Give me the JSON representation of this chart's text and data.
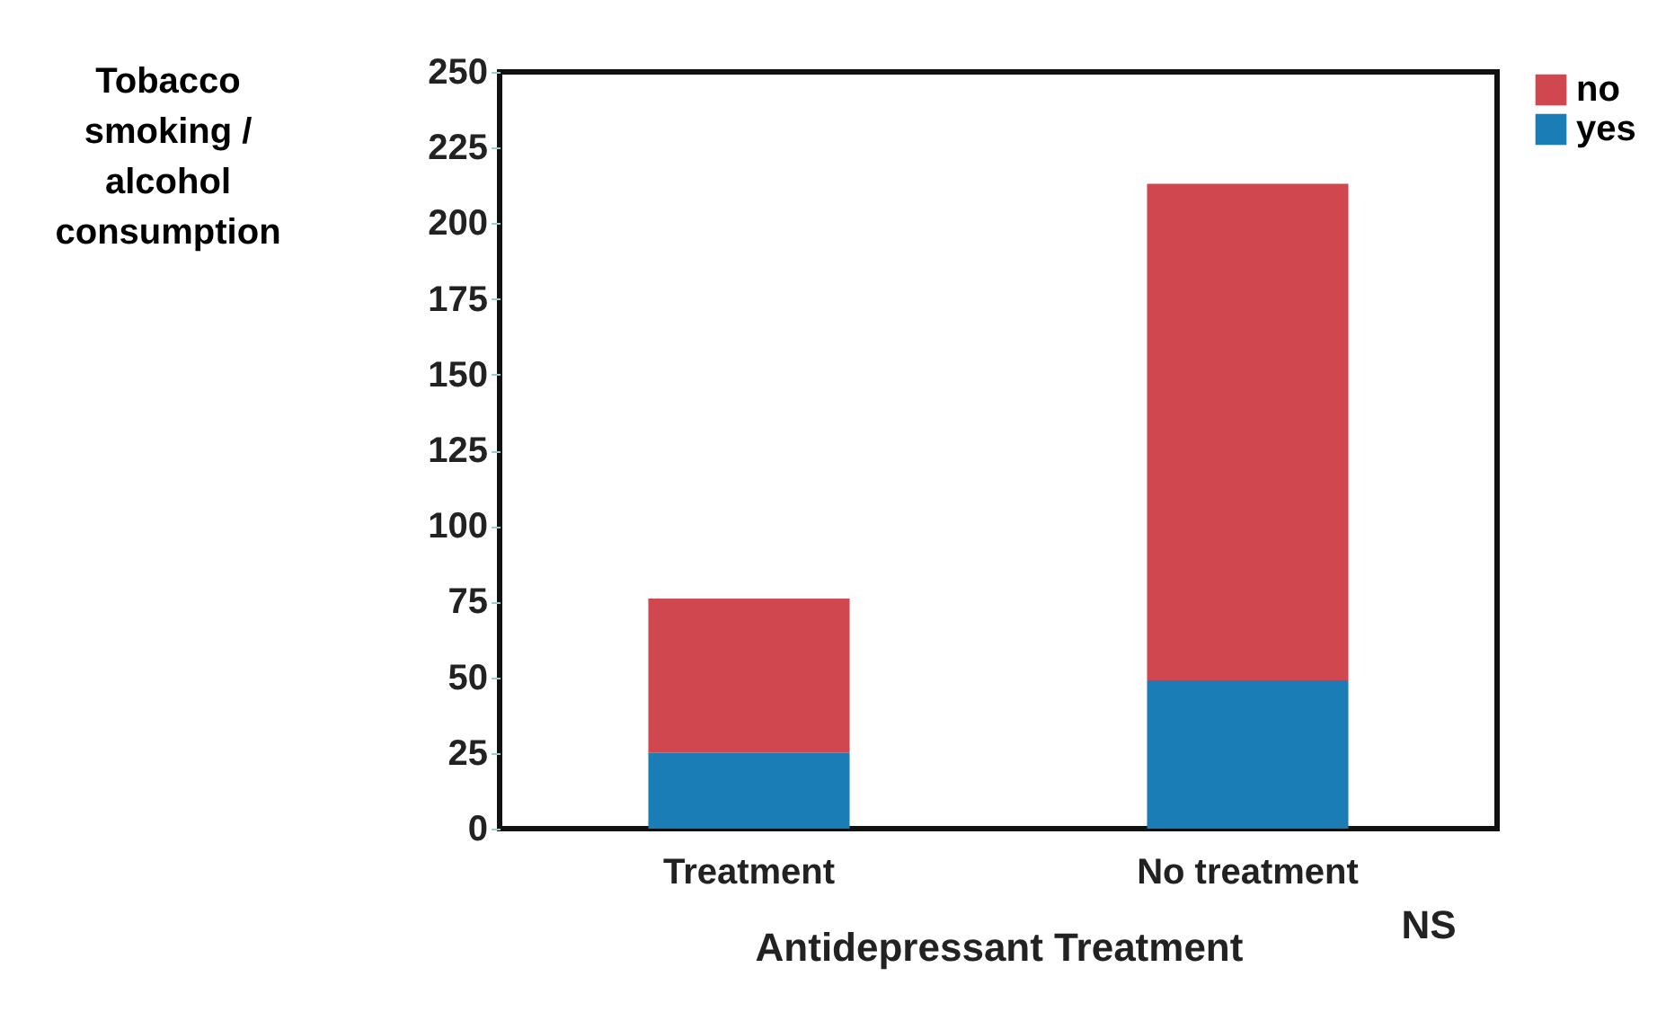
{
  "chart_data": {
    "type": "bar",
    "stacked": true,
    "xlabel": "Antidepressant Treatment",
    "ylabel": "Tobacco smoking / alcohol consumption",
    "categories": [
      "Treatment",
      "No treatment"
    ],
    "series": [
      {
        "name": "yes",
        "color": "#1a7db6",
        "values": [
          25,
          49
        ]
      },
      {
        "name": "no",
        "color": "#d0474f",
        "values": [
          51,
          164
        ]
      }
    ],
    "ylim": [
      0,
      250
    ],
    "yticks": [
      0,
      25,
      50,
      75,
      100,
      125,
      150,
      175,
      200,
      225,
      250
    ],
    "grid": false,
    "legend": "right",
    "annotations": [
      "NS"
    ]
  }
}
